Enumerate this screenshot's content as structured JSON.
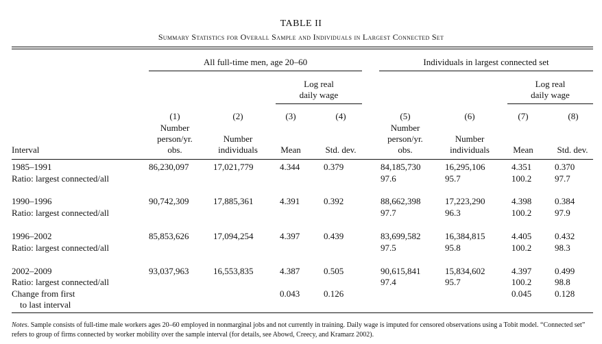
{
  "title": "TABLE II",
  "subtitle": "Summary Statistics for Overall Sample and Individuals in Largest Connected Set",
  "groups": {
    "all": "All full-time men, age 20–60",
    "connected": "Individuals in largest connected set",
    "log_wage_line1": "Log real",
    "log_wage_line2": "daily wage"
  },
  "columns": {
    "interval": "Interval",
    "numbers": [
      "(1)",
      "(2)",
      "(3)",
      "(4)",
      "(5)",
      "(6)",
      "(7)",
      "(8)"
    ],
    "c1": [
      "Number",
      "person/yr.",
      "obs."
    ],
    "c2": [
      "Number",
      "individuals"
    ],
    "c3": "Mean",
    "c4": "Std. dev.",
    "c5": [
      "Number",
      "person/yr.",
      "obs."
    ],
    "c6": [
      "Number",
      "individuals"
    ],
    "c7": "Mean",
    "c8": "Std. dev."
  },
  "rows": [
    {
      "label": "1985–1991",
      "v": [
        "86,230,097",
        "17,021,779",
        "4.344",
        "0.379",
        "84,185,730",
        "16,295,106",
        "4.351",
        "0.370"
      ]
    },
    {
      "label": "Ratio: largest connected/all",
      "v": [
        "",
        "",
        "",
        "",
        "97.6",
        "95.7",
        "100.2",
        "97.7"
      ]
    },
    {
      "label": "1990–1996",
      "v": [
        "90,742,309",
        "17,885,361",
        "4.391",
        "0.392",
        "88,662,398",
        "17,223,290",
        "4.398",
        "0.384"
      ]
    },
    {
      "label": "Ratio: largest connected/all",
      "v": [
        "",
        "",
        "",
        "",
        "97.7",
        "96.3",
        "100.2",
        "97.9"
      ]
    },
    {
      "label": "1996–2002",
      "v": [
        "85,853,626",
        "17,094,254",
        "4.397",
        "0.439",
        "83,699,582",
        "16,384,815",
        "4.405",
        "0.432"
      ]
    },
    {
      "label": "Ratio: largest connected/all",
      "v": [
        "",
        "",
        "",
        "",
        "97.5",
        "95.8",
        "100.2",
        "98.3"
      ]
    },
    {
      "label": "2002–2009",
      "v": [
        "93,037,963",
        "16,553,835",
        "4.387",
        "0.505",
        "90,615,841",
        "15,834,602",
        "4.397",
        "0.499"
      ]
    },
    {
      "label": "Ratio: largest connected/all",
      "v": [
        "",
        "",
        "",
        "",
        "97.4",
        "95.7",
        "100.2",
        "98.8"
      ]
    },
    {
      "label": "Change from first",
      "v": [
        "",
        "",
        "0.043",
        "0.126",
        "",
        "",
        "0.045",
        "0.128"
      ]
    },
    {
      "label": "to last interval",
      "v": [
        "",
        "",
        "",
        "",
        "",
        "",
        "",
        ""
      ]
    }
  ],
  "notes": {
    "label": "Notes",
    "text": ". Sample consists of full-time male workers ages 20–60 employed in nonmarginal jobs and not currently in training. Daily wage is imputed for censored observations using a Tobit model. “Connected set” refers to group of firms connected by worker mobility over the sample interval (for details, see Abowd, Creecy, and Kramarz 2002)."
  }
}
